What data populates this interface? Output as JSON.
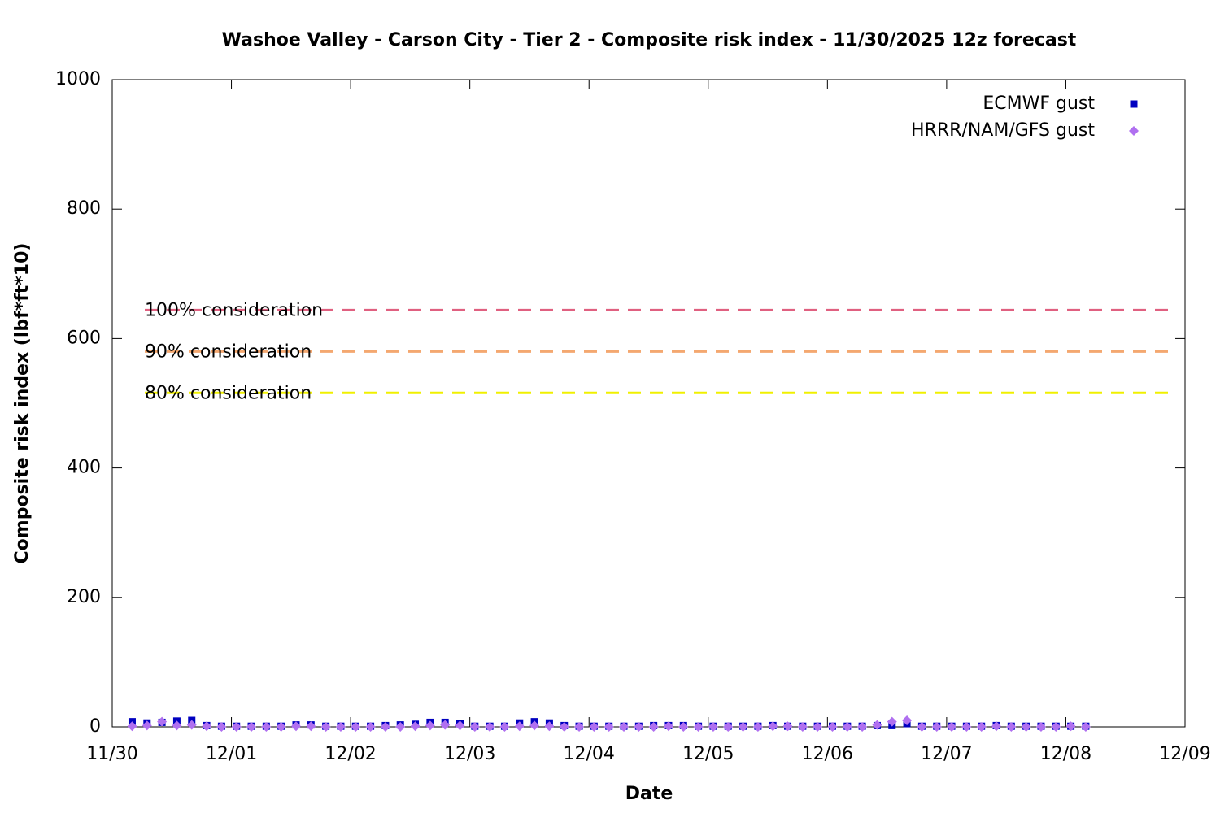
{
  "chart_data": {
    "type": "scatter",
    "title": "Washoe Valley - Carson City - Tier 2 - Composite risk index - 11/30/2025 12z forecast",
    "x_label": "Date",
    "y_label": "Composite risk index (lbf*ft*10)",
    "xlim": [
      0,
      9
    ],
    "xticks": [
      {
        "value": 0,
        "label": "11/30"
      },
      {
        "value": 1,
        "label": "12/01"
      },
      {
        "value": 2,
        "label": "12/02"
      },
      {
        "value": 3,
        "label": "12/03"
      },
      {
        "value": 4,
        "label": "12/04"
      },
      {
        "value": 5,
        "label": "12/05"
      },
      {
        "value": 6,
        "label": "12/06"
      },
      {
        "value": 7,
        "label": "12/07"
      },
      {
        "value": 8,
        "label": "12/08"
      },
      {
        "value": 9,
        "label": "12/09"
      }
    ],
    "ylim": [
      0,
      1000
    ],
    "yticks": [
      0,
      200,
      400,
      600,
      800,
      1000
    ],
    "legend": "top-right",
    "x": [
      0.167,
      0.292,
      0.417,
      0.542,
      0.667,
      0.792,
      0.917,
      1.042,
      1.167,
      1.292,
      1.417,
      1.542,
      1.667,
      1.792,
      1.917,
      2.042,
      2.167,
      2.292,
      2.417,
      2.542,
      2.667,
      2.792,
      2.917,
      3.042,
      3.167,
      3.292,
      3.417,
      3.542,
      3.667,
      3.792,
      3.917,
      4.042,
      4.167,
      4.292,
      4.417,
      4.542,
      4.667,
      4.792,
      4.917,
      5.042,
      5.167,
      5.292,
      5.417,
      5.542,
      5.667,
      5.792,
      5.917,
      6.042,
      6.167,
      6.292,
      6.417,
      6.542,
      6.667,
      6.792,
      6.917,
      7.042,
      7.167,
      7.292,
      7.417,
      7.542,
      7.667,
      7.792,
      7.917,
      8.042,
      8.167
    ],
    "series": [
      {
        "name": "ECMWF gust",
        "color": "#0000c0",
        "marker": "square",
        "values": [
          8,
          6,
          7,
          9,
          10,
          2,
          1,
          1,
          1,
          1,
          1,
          3,
          3,
          1,
          1,
          1,
          1,
          2,
          3,
          4,
          7,
          7,
          5,
          1,
          1,
          1,
          6,
          8,
          6,
          2,
          1,
          1,
          1,
          1,
          1,
          2,
          2,
          2,
          1,
          1,
          1,
          1,
          1,
          2,
          1,
          1,
          1,
          1,
          1,
          1,
          2,
          2,
          5,
          1,
          1,
          1,
          1,
          1,
          2,
          1,
          1,
          1,
          1,
          1,
          1
        ]
      },
      {
        "name": "HRRR/NAM/GFS gust",
        "color": "#b070f0",
        "marker": "diamond",
        "values": [
          1,
          2,
          8,
          2,
          3,
          1,
          0,
          0,
          0,
          0,
          0,
          1,
          1,
          0,
          0,
          0,
          0,
          0,
          0,
          1,
          2,
          3,
          2,
          0,
          0,
          0,
          1,
          2,
          1,
          0,
          0,
          0,
          0,
          0,
          0,
          0,
          1,
          0,
          0,
          0,
          0,
          0,
          0,
          1,
          1,
          0,
          0,
          0,
          0,
          0,
          3,
          8,
          10,
          0,
          0,
          0,
          0,
          0,
          1,
          0,
          0,
          0,
          0,
          1,
          0
        ]
      }
    ],
    "reference_lines": [
      {
        "label": "100% consideration",
        "value": 644,
        "color": "#e06080"
      },
      {
        "label": "90% consideration",
        "value": 580,
        "color": "#f4a870"
      },
      {
        "label": "80% consideration",
        "value": 516,
        "color": "#f0f000"
      }
    ]
  }
}
